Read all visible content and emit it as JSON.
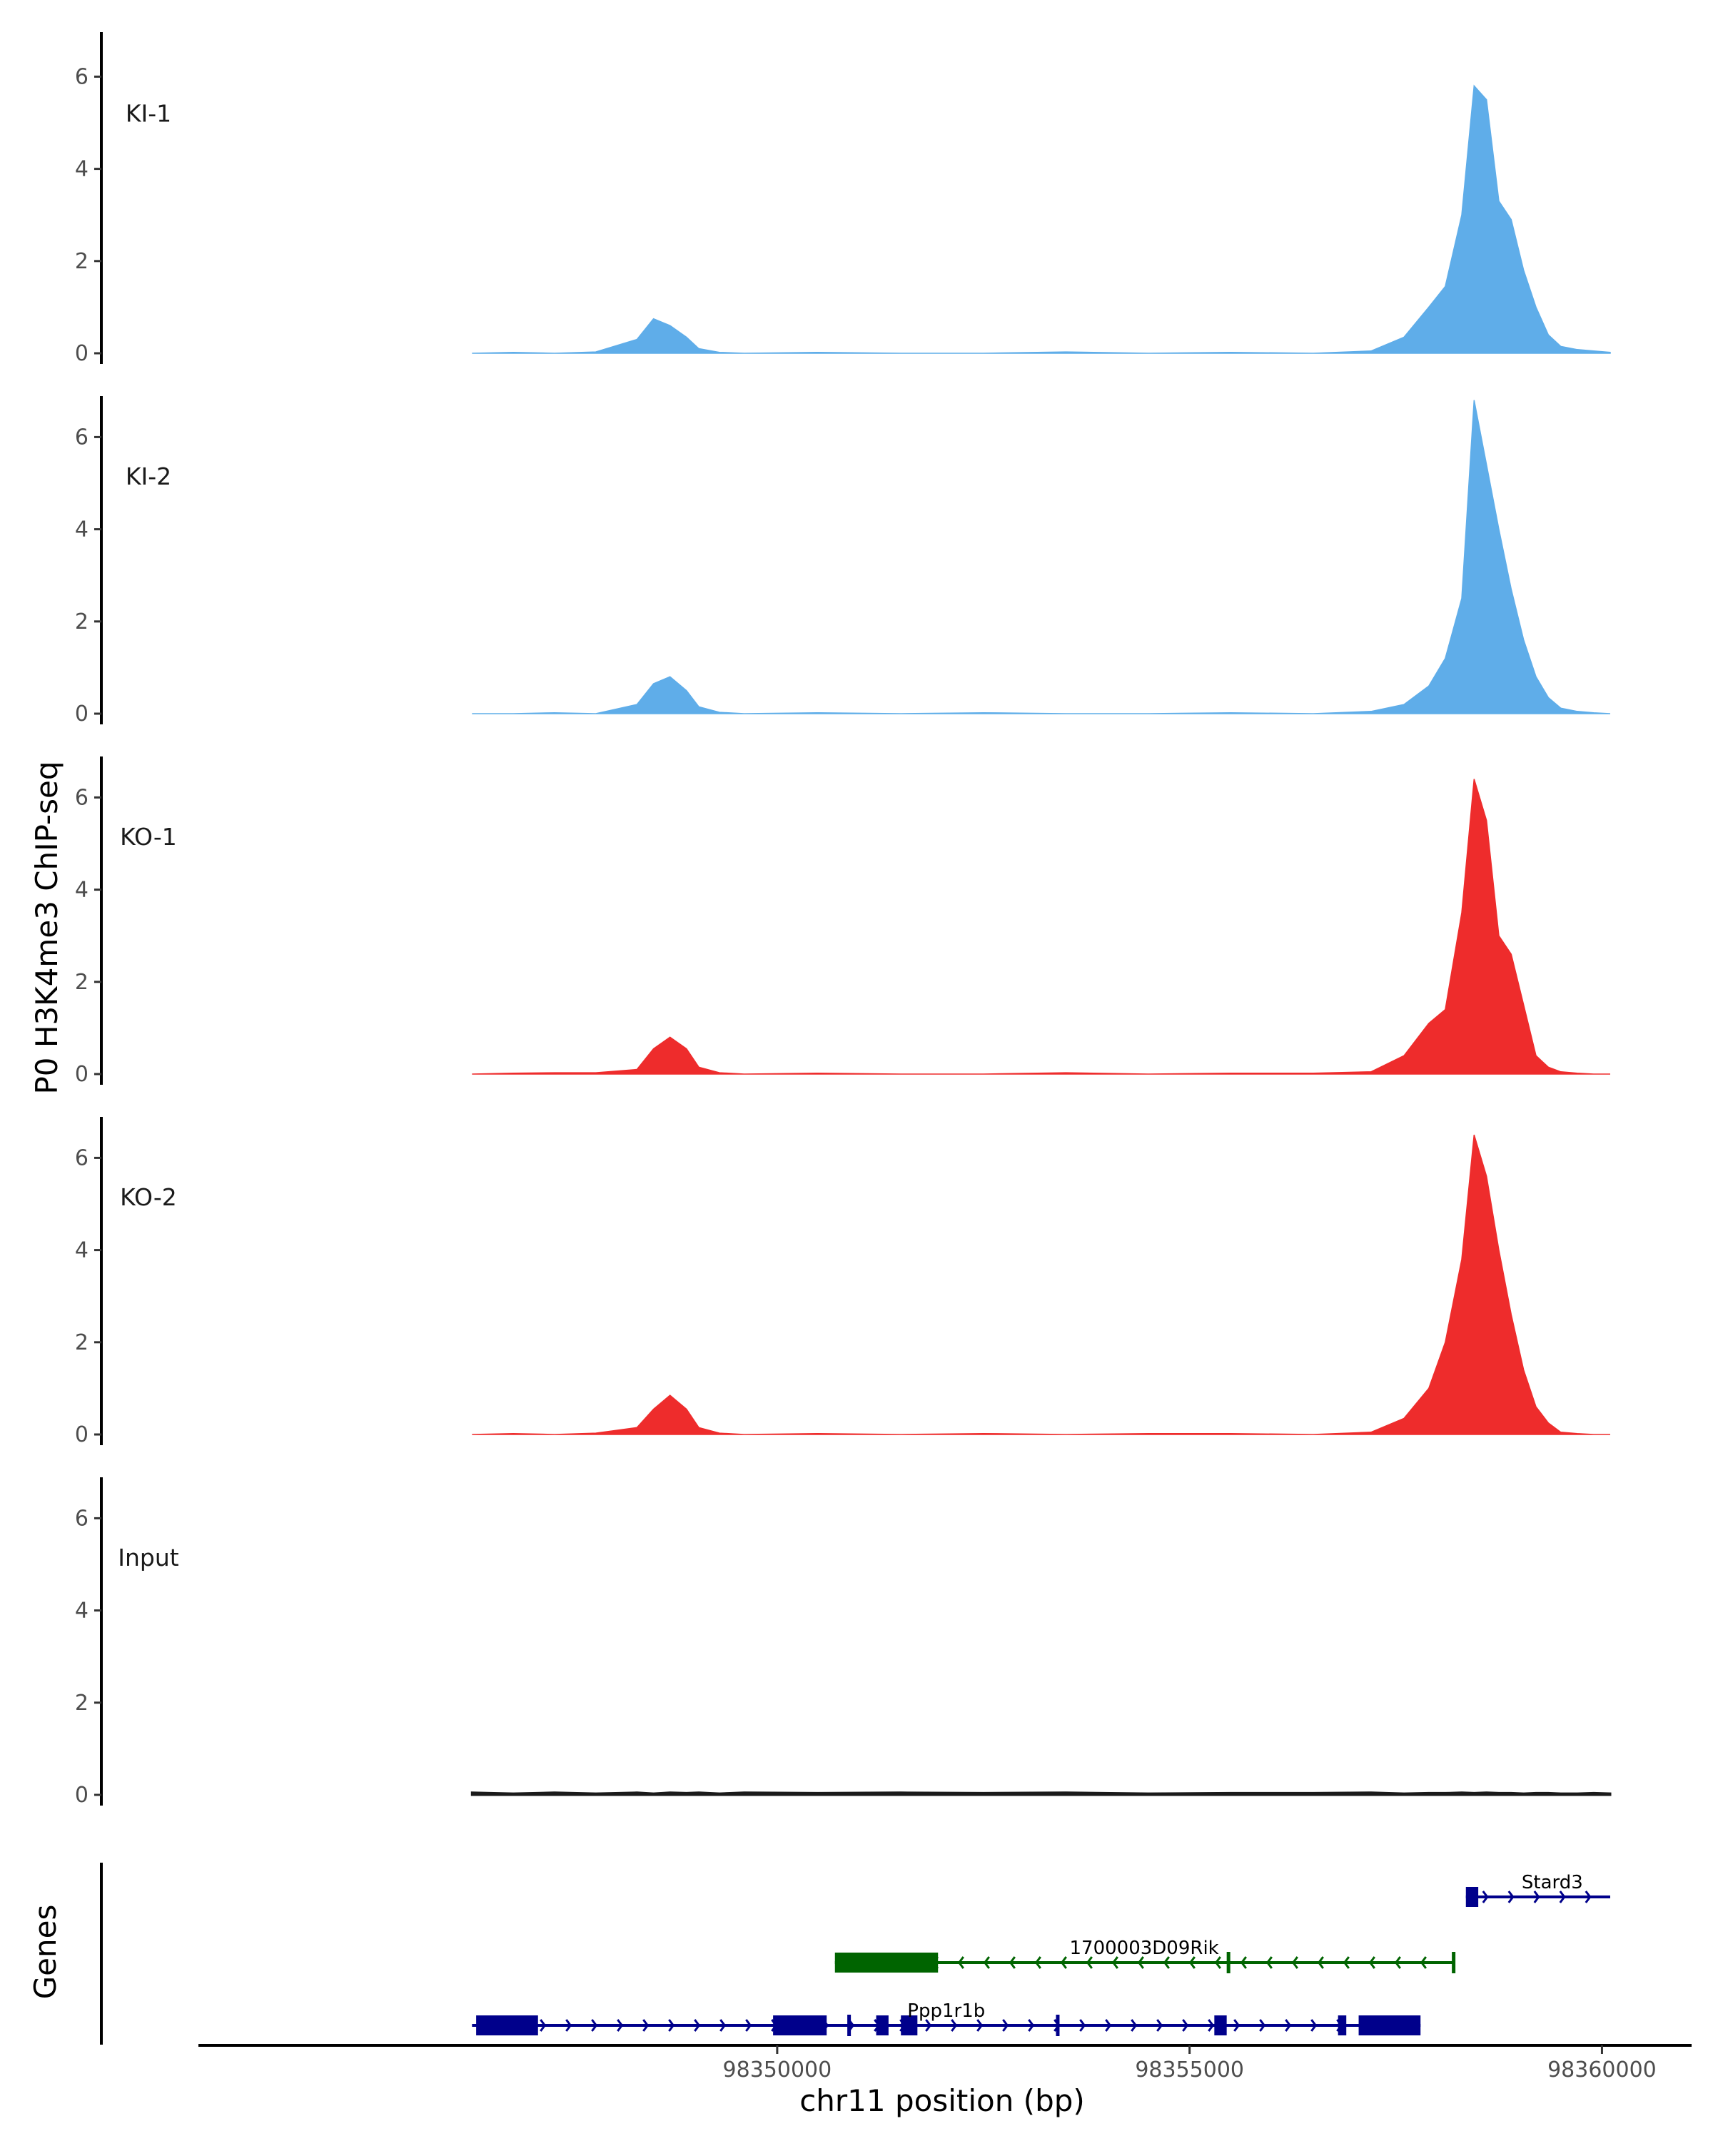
{
  "chart_data": {
    "type": "area",
    "title": "",
    "ylabel": "P0 H3K4me3 ChIP-seq",
    "xlabel": "chr11 position (bp)",
    "xlim": [
      98343000,
      98361000
    ],
    "x_ticks": [
      98350000,
      98355000,
      98360000
    ],
    "x_tick_labels": [
      "98350000",
      "98355000",
      "98360000"
    ],
    "ylim": [
      0,
      7
    ],
    "y_ticks": [
      0,
      2,
      4,
      6
    ],
    "y_tick_labels": [
      "0",
      "2",
      "4",
      "6"
    ],
    "grid": false,
    "x": [
      98346300,
      98346800,
      98347300,
      98347800,
      98348300,
      98348500,
      98348700,
      98348900,
      98349050,
      98349300,
      98349600,
      98350500,
      98351500,
      98352500,
      98353500,
      98354500,
      98355500,
      98356500,
      98357200,
      98357600,
      98357900,
      98358100,
      98358300,
      98358450,
      98358600,
      98358750,
      98358900,
      98359050,
      98359200,
      98359350,
      98359500,
      98359700,
      98359900,
      98360100
    ],
    "series": [
      {
        "name": "KI-1",
        "color": "#5fade9",
        "values": [
          0.0,
          0.02,
          0.0,
          0.03,
          0.3,
          0.75,
          0.6,
          0.35,
          0.1,
          0.02,
          0.0,
          0.02,
          0.0,
          0.0,
          0.03,
          0.0,
          0.02,
          0.0,
          0.05,
          0.35,
          1.0,
          1.45,
          3.0,
          5.8,
          5.5,
          3.3,
          2.9,
          1.8,
          1.0,
          0.4,
          0.15,
          0.08,
          0.05,
          0.02
        ]
      },
      {
        "name": "KI-2",
        "color": "#5fade9",
        "values": [
          0.0,
          0.0,
          0.02,
          0.0,
          0.2,
          0.65,
          0.8,
          0.5,
          0.15,
          0.03,
          0.0,
          0.02,
          0.0,
          0.02,
          0.0,
          0.0,
          0.02,
          0.0,
          0.05,
          0.2,
          0.6,
          1.2,
          2.5,
          6.8,
          5.4,
          4.0,
          2.7,
          1.6,
          0.8,
          0.35,
          0.12,
          0.05,
          0.02,
          0.0
        ]
      },
      {
        "name": "KO-1",
        "color": "#ee2c2c",
        "values": [
          0.0,
          0.02,
          0.03,
          0.03,
          0.1,
          0.55,
          0.8,
          0.55,
          0.15,
          0.03,
          0.0,
          0.02,
          0.0,
          0.0,
          0.03,
          0.0,
          0.02,
          0.02,
          0.05,
          0.4,
          1.1,
          1.4,
          3.5,
          6.4,
          5.5,
          3.0,
          2.6,
          1.5,
          0.4,
          0.15,
          0.05,
          0.02,
          0.0,
          0.0
        ]
      },
      {
        "name": "KO-2",
        "color": "#ee2c2c",
        "values": [
          0.0,
          0.02,
          0.0,
          0.03,
          0.15,
          0.55,
          0.85,
          0.55,
          0.15,
          0.03,
          0.0,
          0.02,
          0.0,
          0.02,
          0.0,
          0.02,
          0.02,
          0.0,
          0.05,
          0.35,
          1.0,
          2.0,
          3.8,
          6.5,
          5.6,
          4.0,
          2.6,
          1.4,
          0.6,
          0.25,
          0.05,
          0.02,
          0.0,
          0.0
        ]
      },
      {
        "name": "Input",
        "color": "#1a1a1a",
        "values": [
          0.05,
          0.03,
          0.05,
          0.03,
          0.05,
          0.03,
          0.05,
          0.04,
          0.05,
          0.03,
          0.05,
          0.04,
          0.05,
          0.04,
          0.05,
          0.03,
          0.04,
          0.04,
          0.05,
          0.03,
          0.04,
          0.04,
          0.05,
          0.04,
          0.05,
          0.04,
          0.04,
          0.03,
          0.04,
          0.04,
          0.03,
          0.03,
          0.04,
          0.03
        ]
      }
    ],
    "genes_track_label": "Genes",
    "genes": [
      {
        "name": "Stard3",
        "strand": "+",
        "start": 98358350,
        "end": 98360100,
        "color": "#00008b",
        "exons": [
          [
            98358350,
            98358500
          ]
        ]
      },
      {
        "name": "1700003D09Rik",
        "strand": "-",
        "start": 98350700,
        "end": 98358200,
        "color": "#006400",
        "exons": [
          [
            98350700,
            98351950
          ],
          [
            98355450,
            98355480
          ],
          [
            98358180,
            98358200
          ]
        ]
      },
      {
        "name": "Ppp1r1b",
        "strand": "+",
        "start": 98346300,
        "end": 98357800,
        "color": "#00008b",
        "exons": [
          [
            98346350,
            98347100
          ],
          [
            98349950,
            98350600
          ],
          [
            98350850,
            98350880
          ],
          [
            98351200,
            98351350
          ],
          [
            98351500,
            98351700
          ],
          [
            98353380,
            98353420
          ],
          [
            98355300,
            98355450
          ],
          [
            98356800,
            98356900
          ],
          [
            98357050,
            98357800
          ]
        ]
      }
    ]
  }
}
